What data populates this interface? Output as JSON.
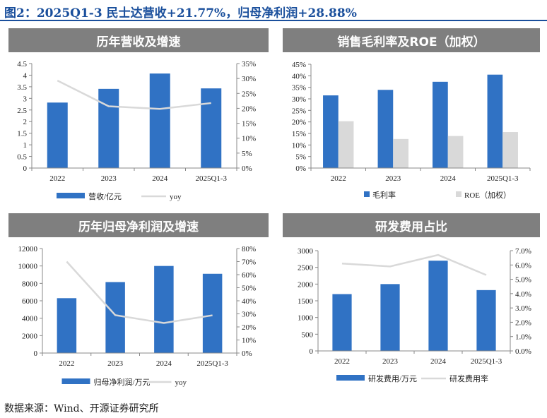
{
  "title": "图2：2025Q1-3 民士达营收+21.77%，归母净利润+28.88%",
  "source": "数据来源：Wind、开源证券研究所",
  "colors": {
    "bar": "#3072c4",
    "secondary": "#d9d9d9",
    "header": "#7f7f7f",
    "title": "#1a4f9c"
  },
  "chart_data": [
    {
      "type": "bar+line",
      "title": "历年营收及增速",
      "categories": [
        "2022",
        "2023",
        "2024",
        "2025Q1-3"
      ],
      "series": [
        {
          "name": "营收/亿元",
          "type": "bar",
          "axis": "left",
          "values": [
            2.82,
            3.41,
            4.07,
            3.43
          ]
        },
        {
          "name": "yoy",
          "type": "line",
          "axis": "right",
          "values": [
            29.3,
            20.7,
            19.8,
            21.77
          ]
        }
      ],
      "yleft": {
        "lim": [
          0,
          4.5
        ],
        "ticks": [
          "0",
          "0.5",
          "1",
          "1.5",
          "2",
          "2.5",
          "3",
          "3.5",
          "4",
          "4.5"
        ]
      },
      "yright": {
        "lim": [
          0,
          35
        ],
        "ticks": [
          "0%",
          "5%",
          "10%",
          "15%",
          "20%",
          "25%",
          "30%",
          "35%"
        ]
      },
      "legend": "bottom"
    },
    {
      "type": "bar",
      "title": "销售毛利率及ROE（加权）",
      "categories": [
        "2022",
        "2023",
        "2024",
        "2025Q1-3"
      ],
      "series": [
        {
          "name": "毛利率",
          "type": "bar",
          "axis": "left",
          "values": [
            31.5,
            33.9,
            37.4,
            40.5
          ]
        },
        {
          "name": "ROE（加权）",
          "type": "bar",
          "axis": "left",
          "values": [
            20.3,
            12.6,
            13.9,
            15.6
          ]
        }
      ],
      "yleft": {
        "lim": [
          0,
          45
        ],
        "ticks": [
          "0%",
          "5%",
          "10%",
          "15%",
          "20%",
          "25%",
          "30%",
          "35%",
          "40%",
          "45%"
        ]
      },
      "legend": "bottom"
    },
    {
      "type": "bar+line",
      "title": "历年归母净利润及增速",
      "categories": [
        "2022",
        "2023",
        "2024",
        "2025Q1-3"
      ],
      "series": [
        {
          "name": "归母净利润/万元",
          "type": "bar",
          "axis": "left",
          "values": [
            6300,
            8150,
            10000,
            9100
          ]
        },
        {
          "name": "yoy",
          "type": "line",
          "axis": "right",
          "values": [
            70,
            29,
            23,
            28.88
          ]
        }
      ],
      "yleft": {
        "lim": [
          0,
          12000
        ],
        "ticks": [
          "0",
          "2000",
          "4000",
          "6000",
          "8000",
          "10000",
          "12000"
        ]
      },
      "yright": {
        "lim": [
          0,
          80
        ],
        "ticks": [
          "0%",
          "10%",
          "20%",
          "30%",
          "40%",
          "50%",
          "60%",
          "70%",
          "80%"
        ]
      },
      "legend": "bottom"
    },
    {
      "type": "bar+line",
      "title": "研发费用占比",
      "categories": [
        "2022",
        "2023",
        "2024",
        "2025Q1-3"
      ],
      "series": [
        {
          "name": "研发费用/万元",
          "type": "bar",
          "axis": "left",
          "values": [
            1700,
            2000,
            2700,
            1820
          ]
        },
        {
          "name": "研发费用率",
          "type": "line",
          "axis": "right",
          "values": [
            6.1,
            5.9,
            6.7,
            5.3
          ]
        }
      ],
      "yleft": {
        "lim": [
          0,
          3000
        ],
        "ticks": [
          "0",
          "500",
          "1000",
          "1500",
          "2000",
          "2500",
          "3000"
        ]
      },
      "yright": {
        "lim": [
          0,
          7
        ],
        "ticks": [
          "0.0%",
          "1.0%",
          "2.0%",
          "3.0%",
          "4.0%",
          "5.0%",
          "6.0%",
          "7.0%"
        ]
      },
      "legend": "bottom"
    }
  ]
}
